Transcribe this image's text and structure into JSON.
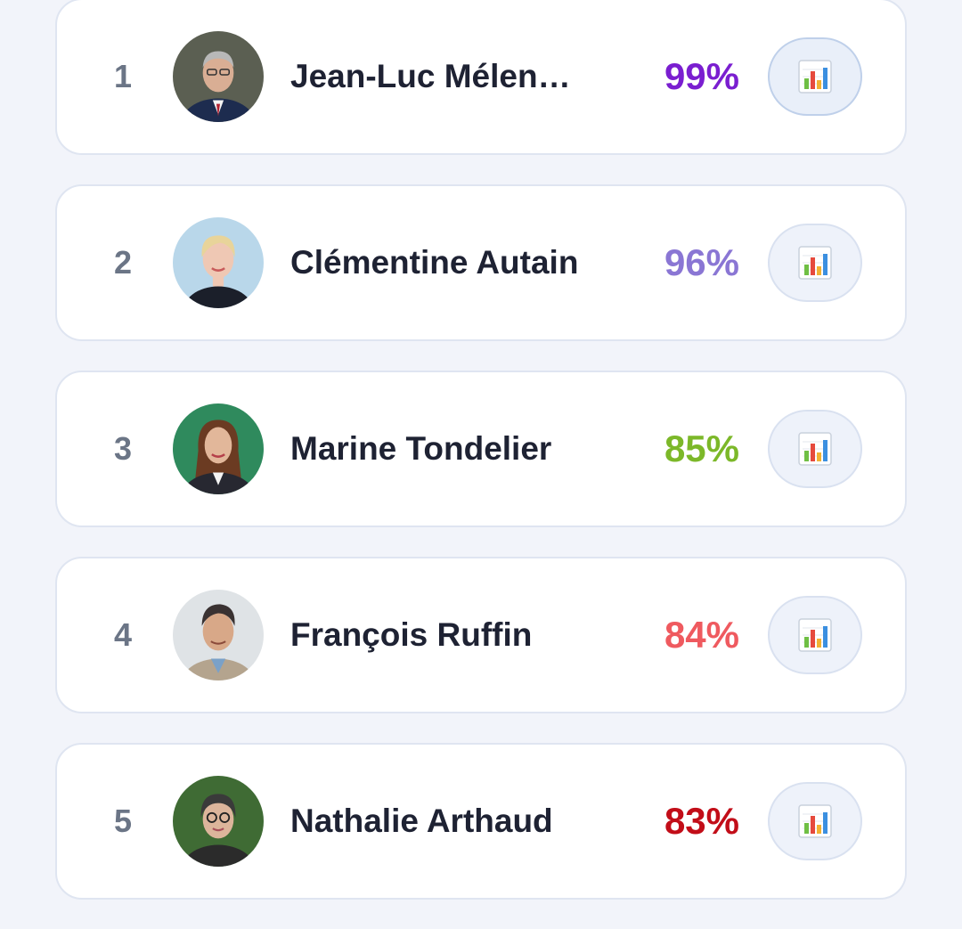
{
  "ranking": [
    {
      "rank": "1",
      "name": "Jean-Luc Mélen…",
      "score": "99%",
      "score_color": "#7a1ed0",
      "avatar_bg": "#5b5f52",
      "avatar_skin": "#d9ae94",
      "avatar_hair": "#b8b8b8",
      "avatar_shirt": "#1d2c4f"
    },
    {
      "rank": "2",
      "name": "Clémentine Autain",
      "score": "96%",
      "score_color": "#8a76d4",
      "avatar_bg": "#b9d7ea",
      "avatar_skin": "#efc8b4",
      "avatar_hair": "#e8d49a",
      "avatar_shirt": "#1b1f2a"
    },
    {
      "rank": "3",
      "name": "Marine Tondelier",
      "score": "85%",
      "score_color": "#7cb829",
      "avatar_bg": "#2f8a5d",
      "avatar_skin": "#e2b79a",
      "avatar_hair": "#6b3b22",
      "avatar_shirt": "#272831"
    },
    {
      "rank": "4",
      "name": "François Ruffin",
      "score": "84%",
      "score_color": "#ef5a5f",
      "avatar_bg": "#dfe3e6",
      "avatar_skin": "#d8a888",
      "avatar_hair": "#3a3232",
      "avatar_shirt": "#b4a48e"
    },
    {
      "rank": "5",
      "name": "Nathalie Arthaud",
      "score": "83%",
      "score_color": "#c20d18",
      "avatar_bg": "#3f6b34",
      "avatar_skin": "#dcb59b",
      "avatar_hair": "#3a3a3a",
      "avatar_shirt": "#2b2b2b"
    }
  ],
  "icons": {
    "chart_button": "bar-chart-icon"
  }
}
